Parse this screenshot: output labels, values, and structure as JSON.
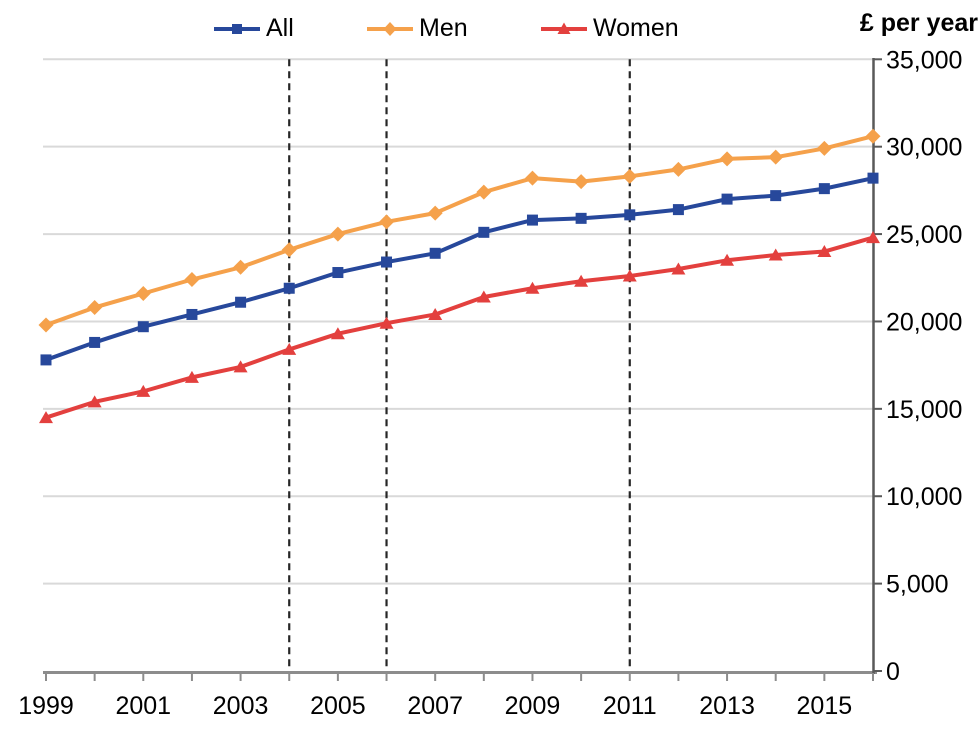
{
  "chart": {
    "y_axis_title": "£ per year"
  },
  "chart_data": {
    "type": "line",
    "title": "",
    "xlabel": "",
    "ylabel": "£ per year",
    "x": [
      1999,
      2000,
      2001,
      2002,
      2003,
      2004,
      2005,
      2006,
      2007,
      2008,
      2009,
      2010,
      2011,
      2012,
      2013,
      2014,
      2015,
      2016
    ],
    "x_tick_labels": [
      "1999",
      "2001",
      "2003",
      "2005",
      "2007",
      "2009",
      "2011",
      "2013",
      "2015"
    ],
    "ylim": [
      0,
      35000
    ],
    "y_tick_step": 5000,
    "y_tick_labels": [
      "0",
      "5,000",
      "10,000",
      "15,000",
      "20,000",
      "25,000",
      "30,000",
      "35,000"
    ],
    "grid": true,
    "legend_position": "top",
    "reference_lines": {
      "years": [
        2004,
        2006,
        2011
      ],
      "style": "dashed",
      "color": "#262626"
    },
    "colors": {
      "gridline": "#D9D9D9",
      "x_axis": "#8C8C8C",
      "y_axis": "#595959",
      "text": "#000000"
    },
    "series": [
      {
        "name": "All",
        "color": "#27489B",
        "marker": "square",
        "values": [
          17800,
          18800,
          19700,
          20400,
          21100,
          21900,
          22800,
          23400,
          23900,
          25100,
          25800,
          25900,
          26100,
          26400,
          27000,
          27200,
          27600,
          28200
        ]
      },
      {
        "name": "Men",
        "color": "#F5A14B",
        "marker": "diamond",
        "values": [
          19800,
          20800,
          21600,
          22400,
          23100,
          24100,
          25000,
          25700,
          26200,
          27400,
          28200,
          28000,
          28300,
          28700,
          29300,
          29400,
          29900,
          30600
        ]
      },
      {
        "name": "Women",
        "color": "#E3403E",
        "marker": "triangle",
        "values": [
          14500,
          15400,
          16000,
          16800,
          17400,
          18400,
          19300,
          19900,
          20400,
          21400,
          21900,
          22300,
          22600,
          23000,
          23500,
          23800,
          24000,
          24800
        ]
      }
    ]
  }
}
